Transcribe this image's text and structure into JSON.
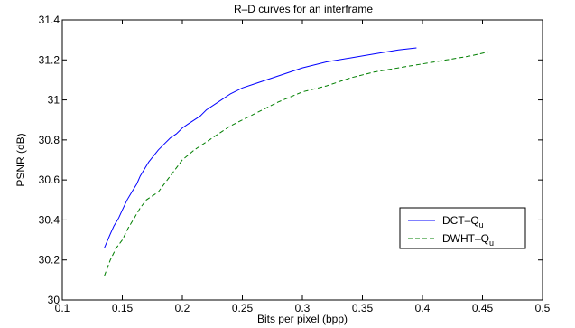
{
  "chart_data": {
    "type": "line",
    "title": "R–D curves for an interframe",
    "xlabel": "Bits per pixel (bpp)",
    "ylabel": "PSNR (dB)",
    "xlim": [
      0.1,
      0.5
    ],
    "ylim": [
      30,
      31.4
    ],
    "xticks": [
      0.1,
      0.15,
      0.2,
      0.25,
      0.3,
      0.35,
      0.4,
      0.45,
      0.5
    ],
    "xtick_labels": [
      "0.1",
      "0.15",
      "0.2",
      "0.25",
      "0.3",
      "0.35",
      "0.4",
      "0.45",
      "0.5"
    ],
    "yticks": [
      30,
      30.2,
      30.4,
      30.6,
      30.8,
      31,
      31.2,
      31.4
    ],
    "ytick_labels": [
      "30",
      "30.2",
      "30.4",
      "30.6",
      "30.8",
      "31",
      "31.2",
      "31.4"
    ],
    "grid": false,
    "legend_position": "right",
    "series": [
      {
        "name": "DCT–Q",
        "name_subscript": "u",
        "color": "#0000ff",
        "dash": "solid",
        "x": [
          0.135,
          0.14,
          0.143,
          0.147,
          0.15,
          0.154,
          0.158,
          0.162,
          0.165,
          0.168,
          0.172,
          0.176,
          0.18,
          0.185,
          0.19,
          0.195,
          0.2,
          0.205,
          0.21,
          0.215,
          0.22,
          0.23,
          0.24,
          0.25,
          0.26,
          0.28,
          0.3,
          0.32,
          0.34,
          0.36,
          0.38,
          0.395
        ],
        "y": [
          30.26,
          30.33,
          30.37,
          30.41,
          30.45,
          30.5,
          30.54,
          30.58,
          30.62,
          30.65,
          30.69,
          30.72,
          30.75,
          30.78,
          30.81,
          30.83,
          30.86,
          30.88,
          30.9,
          30.92,
          30.95,
          30.99,
          31.03,
          31.06,
          31.08,
          31.12,
          31.16,
          31.19,
          31.21,
          31.23,
          31.25,
          31.26
        ]
      },
      {
        "name": "DWHT–Q",
        "name_subscript": "u",
        "color": "#007f00",
        "dash": "dashed",
        "x": [
          0.135,
          0.14,
          0.145,
          0.15,
          0.155,
          0.16,
          0.165,
          0.17,
          0.175,
          0.18,
          0.185,
          0.19,
          0.195,
          0.2,
          0.21,
          0.22,
          0.23,
          0.24,
          0.25,
          0.26,
          0.27,
          0.28,
          0.3,
          0.32,
          0.34,
          0.36,
          0.38,
          0.4,
          0.42,
          0.44,
          0.455
        ],
        "y": [
          30.12,
          30.2,
          30.26,
          30.3,
          30.36,
          30.41,
          30.46,
          30.5,
          30.52,
          30.54,
          30.58,
          30.62,
          30.66,
          30.7,
          30.75,
          30.79,
          30.83,
          30.87,
          30.9,
          30.93,
          30.96,
          30.99,
          31.04,
          31.07,
          31.11,
          31.14,
          31.16,
          31.18,
          31.2,
          31.22,
          31.24
        ]
      }
    ]
  }
}
